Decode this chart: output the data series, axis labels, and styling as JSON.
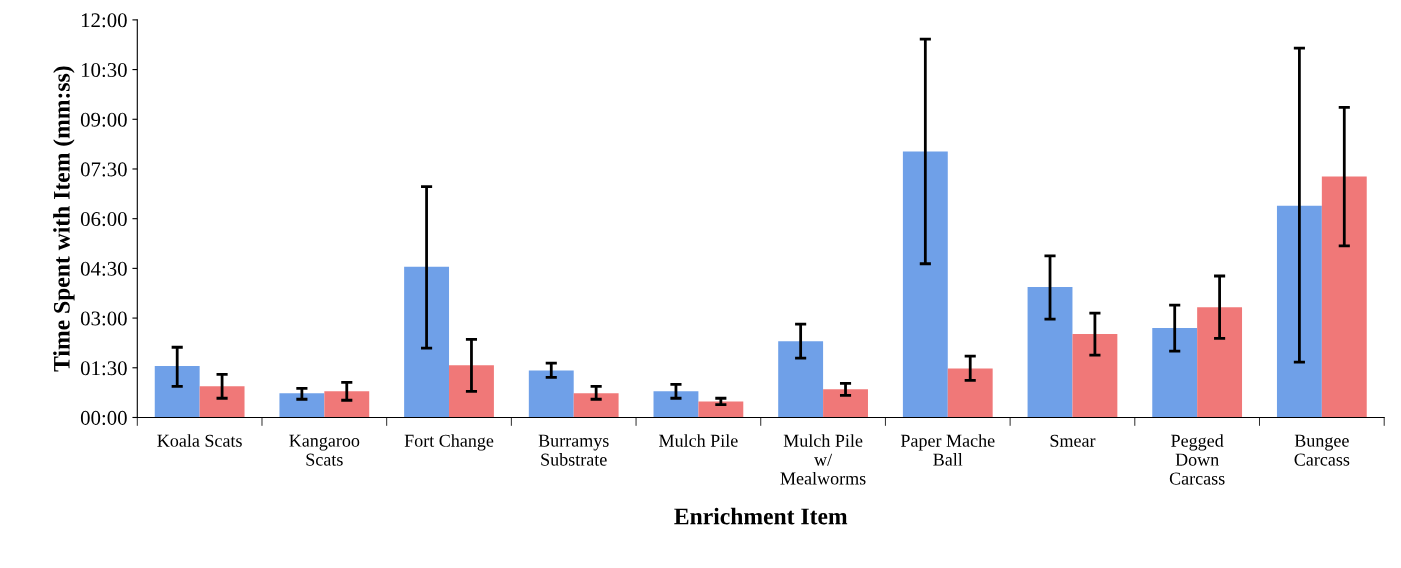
{
  "chart_data": {
    "type": "bar",
    "xlabel": "Enrichment Item",
    "ylabel": "Time Spent with Item (mm:ss)",
    "categories": [
      "Koala Scats",
      "Kangaroo\nScats",
      "Fort Change",
      "Burramys\nSubstrate",
      "Mulch Pile",
      "Mulch Pile\nw/\nMealworms",
      "Paper Mache\nBall",
      "Smear",
      "Pegged\nDown\nCarcass",
      "Bungee\nCarcass"
    ],
    "series": [
      {
        "color": "#6fa0e8",
        "values": [
          1.55,
          0.73,
          4.55,
          1.42,
          0.79,
          2.3,
          8.03,
          3.94,
          2.7,
          6.39
        ],
        "errors": [
          [
            0.94,
            2.12
          ],
          [
            0.55,
            0.88
          ],
          [
            2.09,
            6.97
          ],
          [
            1.21,
            1.64
          ],
          [
            0.58,
            1.0
          ],
          [
            1.79,
            2.82
          ],
          [
            4.64,
            11.42
          ],
          [
            2.97,
            4.88
          ],
          [
            2.0,
            3.39
          ],
          [
            1.67,
            11.15
          ]
        ]
      },
      {
        "color": "#f07878",
        "values": [
          0.94,
          0.79,
          1.58,
          0.73,
          0.48,
          0.85,
          1.48,
          2.52,
          3.33,
          7.27
        ],
        "errors": [
          [
            0.58,
            1.3
          ],
          [
            0.52,
            1.06
          ],
          [
            0.79,
            2.36
          ],
          [
            0.55,
            0.94
          ],
          [
            0.39,
            0.58
          ],
          [
            0.67,
            1.03
          ],
          [
            1.12,
            1.85
          ],
          [
            1.88,
            3.15
          ],
          [
            2.39,
            4.27
          ],
          [
            5.18,
            9.36
          ]
        ]
      }
    ],
    "ylim": [
      0,
      12
    ],
    "yticks": [
      {
        "value": 0,
        "label": "00:00"
      },
      {
        "value": 1.5,
        "label": "01:30"
      },
      {
        "value": 3,
        "label": "03:00"
      },
      {
        "value": 4.5,
        "label": "04:30"
      },
      {
        "value": 6,
        "label": "06:00"
      },
      {
        "value": 7.5,
        "label": "07:30"
      },
      {
        "value": 9,
        "label": "09:00"
      },
      {
        "value": 10.5,
        "label": "10:30"
      },
      {
        "value": 12,
        "label": "12:00"
      }
    ],
    "grid": false,
    "legend": false
  }
}
